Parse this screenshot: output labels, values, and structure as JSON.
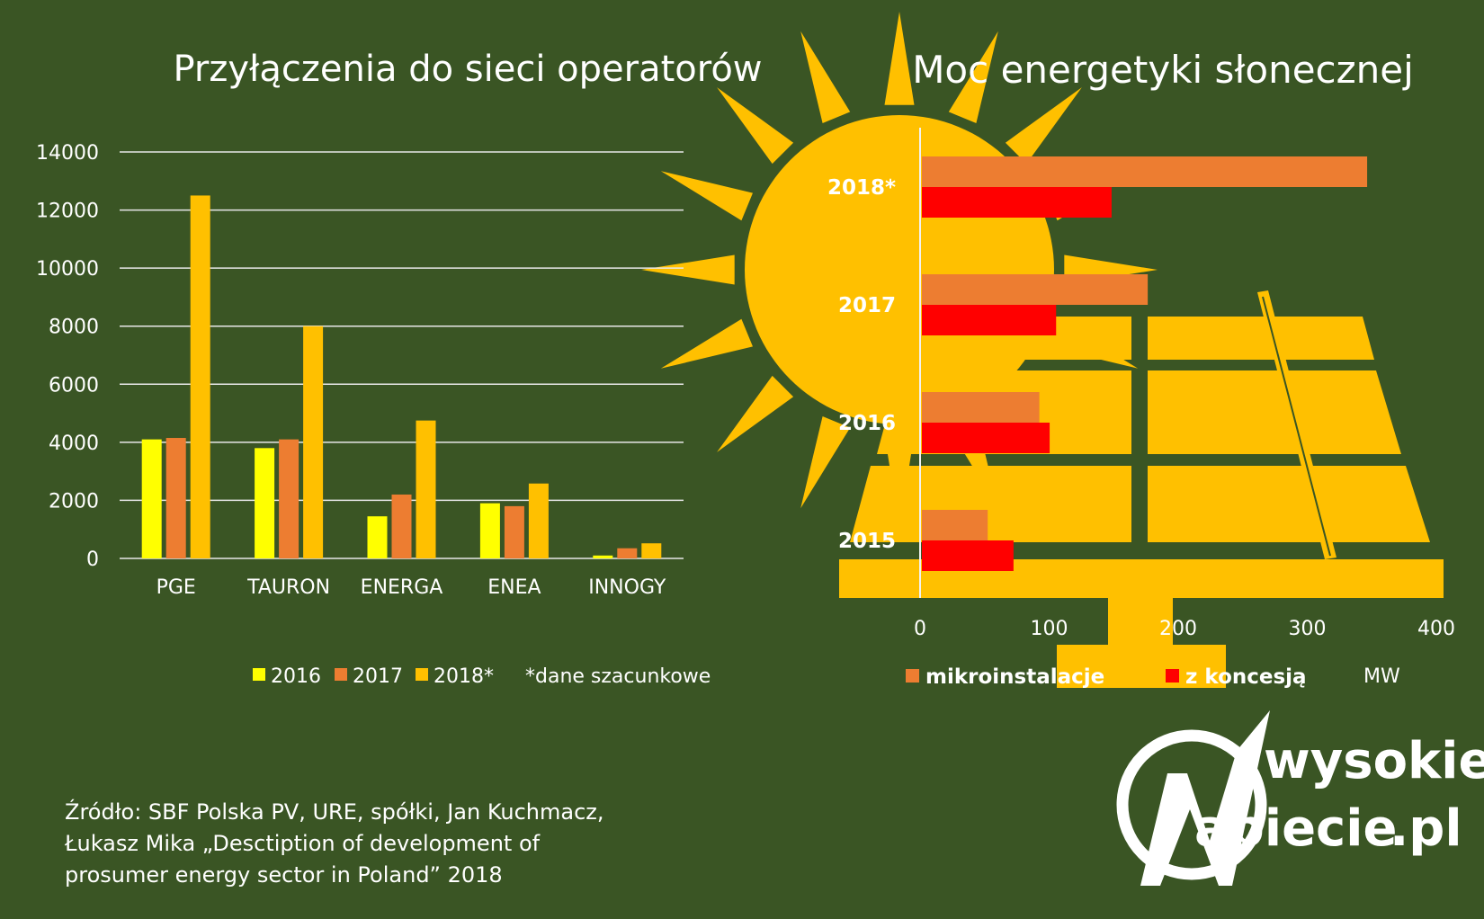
{
  "colors": {
    "background": "#3a5524",
    "c2016": "#ffff00",
    "c2017": "#ed7d31",
    "c2018": "#ffc000",
    "mikro": "#ed7d31",
    "koncesja": "#ff0000",
    "sun": "#ffc000"
  },
  "chart_data": [
    {
      "type": "bar",
      "title": "Przyłączenia do sieci operatorów",
      "categories": [
        "PGE",
        "TAURON",
        "ENERGA",
        "ENEA",
        "INNOGY"
      ],
      "series": [
        {
          "name": "2016",
          "values": [
            4100,
            3800,
            1450,
            1900,
            100
          ]
        },
        {
          "name": "2017",
          "values": [
            4150,
            4100,
            2200,
            1800,
            350
          ]
        },
        {
          "name": "2018*",
          "values": [
            12500,
            8000,
            4750,
            2580,
            520
          ]
        }
      ],
      "note": "*dane szacunkowe",
      "ylim": [
        0,
        14000
      ],
      "yticks": [
        "0",
        "2000",
        "4000",
        "6000",
        "8000",
        "10000",
        "12000",
        "14000"
      ],
      "grid": true,
      "legend": "bottom"
    },
    {
      "type": "bar",
      "orientation": "horizontal",
      "title": "Moc energetyki słonecznej",
      "categories": [
        "2018*",
        "2017",
        "2016",
        "2015"
      ],
      "series": [
        {
          "name": "mikroinstalacje",
          "values": [
            345,
            175,
            91,
            51
          ]
        },
        {
          "name": "z koncesją",
          "values": [
            147,
            104,
            99,
            71
          ]
        }
      ],
      "xlim": [
        0,
        400
      ],
      "xticks": [
        "0",
        "100",
        "200",
        "300",
        "400"
      ],
      "xunit": "MW",
      "legend": "bottom"
    }
  ],
  "source_lines": [
    "Źródło: SBF Polska PV, URE, spółki, Jan Kuchmacz,",
    "Łukasz Mika „Desctiption of development of",
    "prosumer energy sector in Poland” 2018"
  ],
  "logo": {
    "line1": "wysokie",
    "line2": "apiecie",
    "suffix": ".pl",
    "initial": "N"
  }
}
